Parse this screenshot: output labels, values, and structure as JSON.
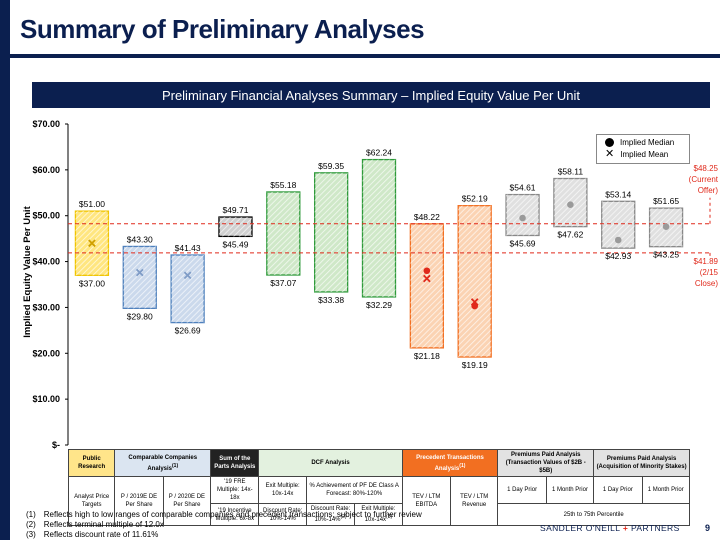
{
  "page": {
    "title": "Summary of Preliminary Analyses",
    "banner": "Preliminary Financial Analyses Summary – Implied Equity Value Per Unit",
    "page_number": "9",
    "logo": {
      "left": "SANDLER O'NEILL",
      "plus": "+",
      "right": "PARTNERS"
    }
  },
  "chart_data": {
    "type": "floating-bar",
    "ylabel": "Implied Equity Value Per Unit",
    "ylim": [
      0,
      70
    ],
    "yticks": [
      0,
      10,
      20,
      30,
      40,
      50,
      60,
      70
    ],
    "ytick_labels": [
      "$-",
      "$10.00",
      "$20.00",
      "$30.00",
      "$40.00",
      "$50.00",
      "$60.00",
      "$70.00"
    ],
    "legend": {
      "median": "Implied Median",
      "mean": "Implied Mean"
    },
    "reference_lines": [
      {
        "value": 48.25,
        "text_lines": [
          "$48.25",
          "(Current",
          "Offer)"
        ]
      },
      {
        "value": 41.89,
        "text_lines": [
          "$41.89",
          "(2/15",
          "Close)"
        ]
      }
    ],
    "bars": [
      {
        "id": "public-price",
        "low": 37.0,
        "high": 51.0,
        "low_label": "$37.00",
        "high_label": "$51.00",
        "mean": 44.0,
        "median": null,
        "fill": "#ffe680",
        "stroke": "#f0c400"
      },
      {
        "id": "public-2019",
        "low": 29.8,
        "high": 43.3,
        "low_label": "$29.80",
        "high_label": "$43.30",
        "mean": 37.6,
        "median": null,
        "fill": "#cbd9ec",
        "stroke": "#4f81bd"
      },
      {
        "id": "public-2020",
        "low": 26.69,
        "high": 41.43,
        "low_label": "$26.69",
        "high_label": "$41.43",
        "mean": 37.0,
        "median": null,
        "fill": "#cbd9ec",
        "stroke": "#4f81bd"
      },
      {
        "id": "sotp",
        "low": 45.49,
        "high": 49.71,
        "low_label": "$45.49",
        "high_label": "$49.71",
        "mean": null,
        "median": null,
        "fill": "#d0d0d0",
        "stroke": "#000000"
      },
      {
        "id": "dcf-frbe",
        "low": 37.07,
        "high": 55.18,
        "low_label": "$37.07",
        "high_label": "$55.18",
        "mean": null,
        "median": null,
        "fill": "#cfe8c8",
        "stroke": "#2e9a3a"
      },
      {
        "id": "dcf-discount",
        "low": 33.38,
        "high": 59.35,
        "low_label": "$33.38",
        "high_label": "$59.35",
        "mean": null,
        "median": null,
        "fill": "#cfe8c8",
        "stroke": "#2e9a3a"
      },
      {
        "id": "dcf-exit",
        "low": 32.29,
        "high": 62.24,
        "low_label": "$32.29",
        "high_label": "$62.24",
        "mean": null,
        "median": null,
        "fill": "#cfe8c8",
        "stroke": "#2e9a3a"
      },
      {
        "id": "prec-ebitda",
        "low": 21.18,
        "high": 48.22,
        "low_label": "$21.18",
        "high_label": "$48.22",
        "mean": 36.3,
        "median": 38.0,
        "fill": "#fbd3b3",
        "stroke": "#f26f21"
      },
      {
        "id": "prec-revenue",
        "low": 19.19,
        "high": 52.19,
        "low_label": "$19.19",
        "high_label": "$52.19",
        "mean": 31.2,
        "median": 30.3,
        "fill": "#fbd3b3",
        "stroke": "#f26f21"
      },
      {
        "id": "prem-1day",
        "low": 45.69,
        "high": 54.61,
        "low_label": "$45.69",
        "high_label": "$54.61",
        "mean": null,
        "median": 49.5,
        "fill": "#e0e0e0",
        "stroke": "#888888"
      },
      {
        "id": "prem-1month",
        "low": 47.62,
        "high": 58.11,
        "low_label": "$47.62",
        "high_label": "$58.11",
        "mean": null,
        "median": 52.4,
        "fill": "#e0e0e0",
        "stroke": "#888888"
      },
      {
        "id": "min-1day",
        "low": 42.93,
        "high": 53.14,
        "low_label": "$42.93",
        "high_label": "$53.14",
        "mean": null,
        "median": 44.7,
        "fill": "#e0e0e0",
        "stroke": "#888888"
      },
      {
        "id": "min-1month",
        "low": 43.25,
        "high": 51.65,
        "low_label": "$43.25",
        "high_label": "$51.65",
        "mean": null,
        "median": 47.6,
        "fill": "#e0e0e0",
        "stroke": "#888888"
      }
    ]
  },
  "table": {
    "headers": {
      "public": "Public Research",
      "comparable": "Comparable Companies Analysis",
      "comparable_sup": "(1)",
      "sotp": "Sum of the Parts Analysis",
      "dcf": "DCF Analysis",
      "precedent": "Precedent Transactions Analysis",
      "precedent_sup": "(1)",
      "premiums_a": "Premiums Paid Analysis (Transaction Values of $2B - $5B)",
      "premiums_b": "Premiums Paid Analysis (Acquisition of Minority Stakes)"
    },
    "cols": {
      "price_targets": "Analyst Price Targets",
      "pe2019": "P / 2019E DE Per Share",
      "pe2020": "P / 2020E DE Per Share",
      "sotp_top": "'19 FRE Multiple: 14x-18x",
      "sotp_bottom": "'19 Incentive Multiple: 6x-8x",
      "dcf_exit_top": "Exit Multiple: 10x-14x",
      "dcf_disc_bottom": "Discount Rate: 10%-14%",
      "dcf_pf_top": "% Achievement of PF DE Class A Forecast: 80%-120%",
      "dcf_disc2_bottom": "Discount Rate: 10%-14%",
      "dcf_disc2_sup": "(2)",
      "dcf_exit2_bottom": "Exit Multiple: 10x-14x",
      "dcf_exit2_sup": "(3)",
      "tev_ebitda": "TEV / LTM EBITDA",
      "tev_revenue": "TEV / LTM Revenue",
      "day1": "1 Day Prior",
      "month1": "1 Month Prior",
      "day1b": "1 Day Prior",
      "month1b": "1 Month Prior",
      "percentile": "25th to 75th Percentile"
    }
  },
  "footnotes": [
    {
      "num": "(1)",
      "text": "Reflects high to low ranges of comparable companies and precedent transactions; subject to further review"
    },
    {
      "num": "(2)",
      "text": "Reflects terminal multiple of 12.0x"
    },
    {
      "num": "(3)",
      "text": "Reflects discount rate of 11.61%"
    }
  ]
}
